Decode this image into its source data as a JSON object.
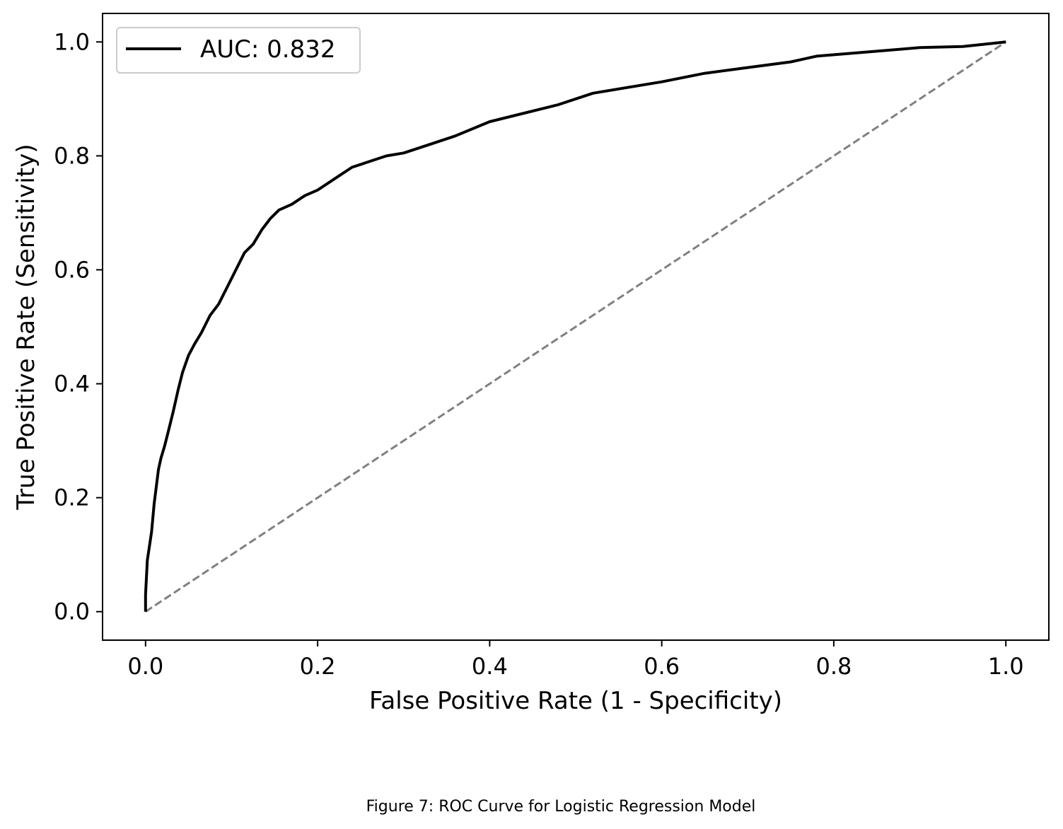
{
  "chart_data": {
    "type": "line",
    "title": "",
    "xlabel": "False Positive Rate (1 - Specificity)",
    "ylabel": "True Positive Rate (Sensitivity)",
    "xlim": [
      -0.05,
      1.05
    ],
    "ylim": [
      -0.05,
      1.05
    ],
    "xticks": [
      0.0,
      0.2,
      0.4,
      0.6,
      0.8,
      1.0
    ],
    "yticks": [
      0.0,
      0.2,
      0.4,
      0.6,
      0.8,
      1.0
    ],
    "xtick_labels": [
      "0.0",
      "0.2",
      "0.4",
      "0.6",
      "0.8",
      "1.0"
    ],
    "ytick_labels": [
      "0.0",
      "0.2",
      "0.4",
      "0.6",
      "0.8",
      "1.0"
    ],
    "grid": false,
    "legend_position": "top-left",
    "series": [
      {
        "name": "AUC: 0.832",
        "color": "#000000",
        "style": "solid",
        "x": [
          0.0,
          0.0,
          0.002,
          0.005,
          0.007,
          0.01,
          0.015,
          0.018,
          0.022,
          0.027,
          0.032,
          0.038,
          0.043,
          0.05,
          0.057,
          0.065,
          0.075,
          0.085,
          0.095,
          0.105,
          0.115,
          0.125,
          0.135,
          0.145,
          0.155,
          0.17,
          0.185,
          0.2,
          0.22,
          0.24,
          0.26,
          0.28,
          0.3,
          0.33,
          0.36,
          0.4,
          0.44,
          0.48,
          0.52,
          0.56,
          0.6,
          0.65,
          0.7,
          0.75,
          0.78,
          0.82,
          0.86,
          0.9,
          0.95,
          1.0
        ],
        "y": [
          0.0,
          0.03,
          0.09,
          0.12,
          0.14,
          0.19,
          0.25,
          0.27,
          0.29,
          0.32,
          0.35,
          0.39,
          0.42,
          0.45,
          0.47,
          0.49,
          0.52,
          0.54,
          0.57,
          0.6,
          0.63,
          0.645,
          0.67,
          0.69,
          0.705,
          0.715,
          0.73,
          0.74,
          0.76,
          0.78,
          0.79,
          0.8,
          0.805,
          0.82,
          0.835,
          0.86,
          0.875,
          0.89,
          0.91,
          0.92,
          0.93,
          0.945,
          0.955,
          0.965,
          0.975,
          0.98,
          0.985,
          0.99,
          0.992,
          1.0
        ]
      },
      {
        "name": "",
        "color": "#808080",
        "style": "dashed",
        "x": [
          0.0,
          1.0
        ],
        "y": [
          0.0,
          1.0
        ]
      }
    ]
  },
  "legend": {
    "entries": [
      "AUC: 0.832"
    ]
  },
  "caption": "Figure 7: ROC Curve for Logistic Regression Model"
}
